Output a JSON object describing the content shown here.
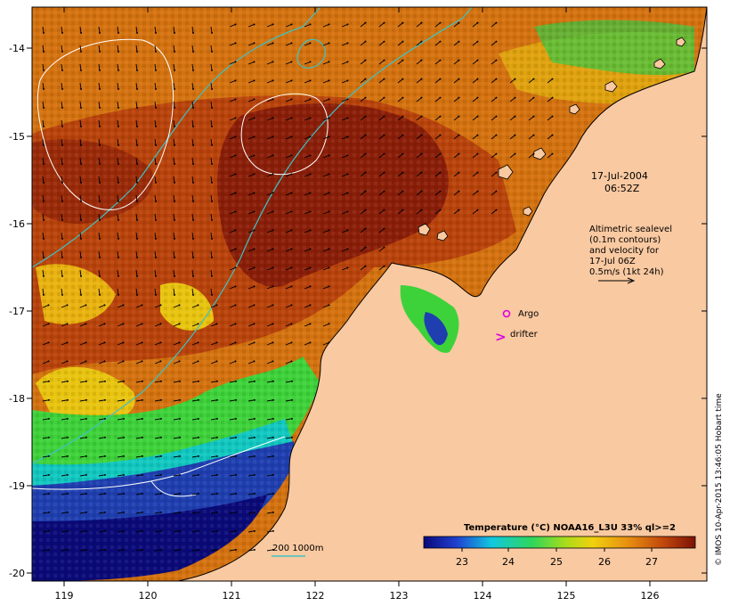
{
  "map": {
    "x_axis": {
      "labels": [
        "119",
        "120",
        "121",
        "122",
        "123",
        "124",
        "125",
        "126"
      ]
    },
    "y_axis": {
      "labels": [
        "-14",
        "-15",
        "-16",
        "-17",
        "-18",
        "-19",
        "-20"
      ]
    },
    "timestamp_line1": "17-Jul-2004",
    "timestamp_line2": "06:52Z",
    "altimetry_lines": [
      "Altimetric sealevel",
      "(0.1m contours)",
      "and velocity for",
      "17-Jul 06Z",
      "0.5m/s (1kt 24h)"
    ],
    "argo_label": "Argo",
    "drifter_label": "drifter",
    "drifter_symbol": ">",
    "isobath_label": "200  1000m",
    "colorbar": {
      "title": "Temperature (°C) NOAA16_L3U 33% ql>=2",
      "tick_labels": [
        "23",
        "24",
        "25",
        "26",
        "27"
      ]
    },
    "credit": "© IMOS 10-Apr-2015 13:46:05 Hobart time",
    "colors": {
      "land": "#f9c9a1",
      "warm_dark": "#8a1e08",
      "warm_mid": "#b9430b",
      "warm_orange": "#d4720f",
      "yellow": "#e9c40f",
      "green": "#3ed23a",
      "cyan": "#11c8c0",
      "blue": "#1f3fb0",
      "navy": "#0a0a78",
      "isobath": "#3dc3c3",
      "argo": "#e000e0"
    }
  }
}
